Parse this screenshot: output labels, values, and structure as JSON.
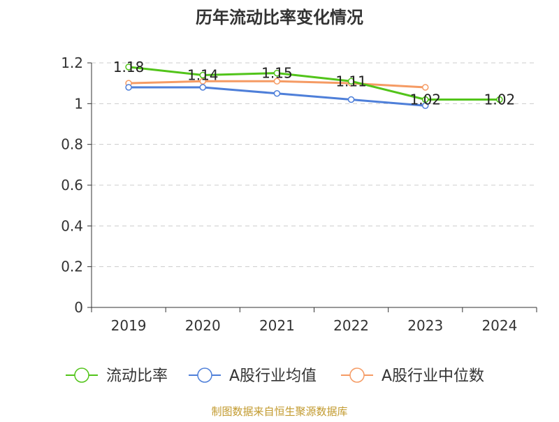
{
  "chart_data": {
    "type": "line",
    "title": "历年流动比率变化情况",
    "categories": [
      "2019",
      "2020",
      "2021",
      "2022",
      "2023",
      "2024"
    ],
    "ylim": [
      0,
      1.2
    ],
    "yticks": [
      "0",
      "0.2",
      "0.4",
      "0.6",
      "0.8",
      "1",
      "1.2"
    ],
    "grid": true,
    "legend_position": "bottom",
    "series": [
      {
        "name": "流动比率",
        "color": "#52c41a",
        "values": [
          1.18,
          1.14,
          1.15,
          1.11,
          1.02,
          1.02
        ],
        "labels": [
          "1.18",
          "1.14",
          "1.15",
          "1.11",
          "1.02",
          "1.02"
        ]
      },
      {
        "name": "A股行业均值",
        "color": "#4e7fd9",
        "values": [
          1.08,
          1.08,
          1.05,
          1.02,
          0.99,
          null
        ]
      },
      {
        "name": "A股行业中位数",
        "color": "#f59b64",
        "values": [
          1.1,
          1.11,
          1.11,
          1.1,
          1.08,
          null
        ]
      }
    ]
  },
  "footer": {
    "source": "制图数据来自恒生聚源数据库"
  }
}
